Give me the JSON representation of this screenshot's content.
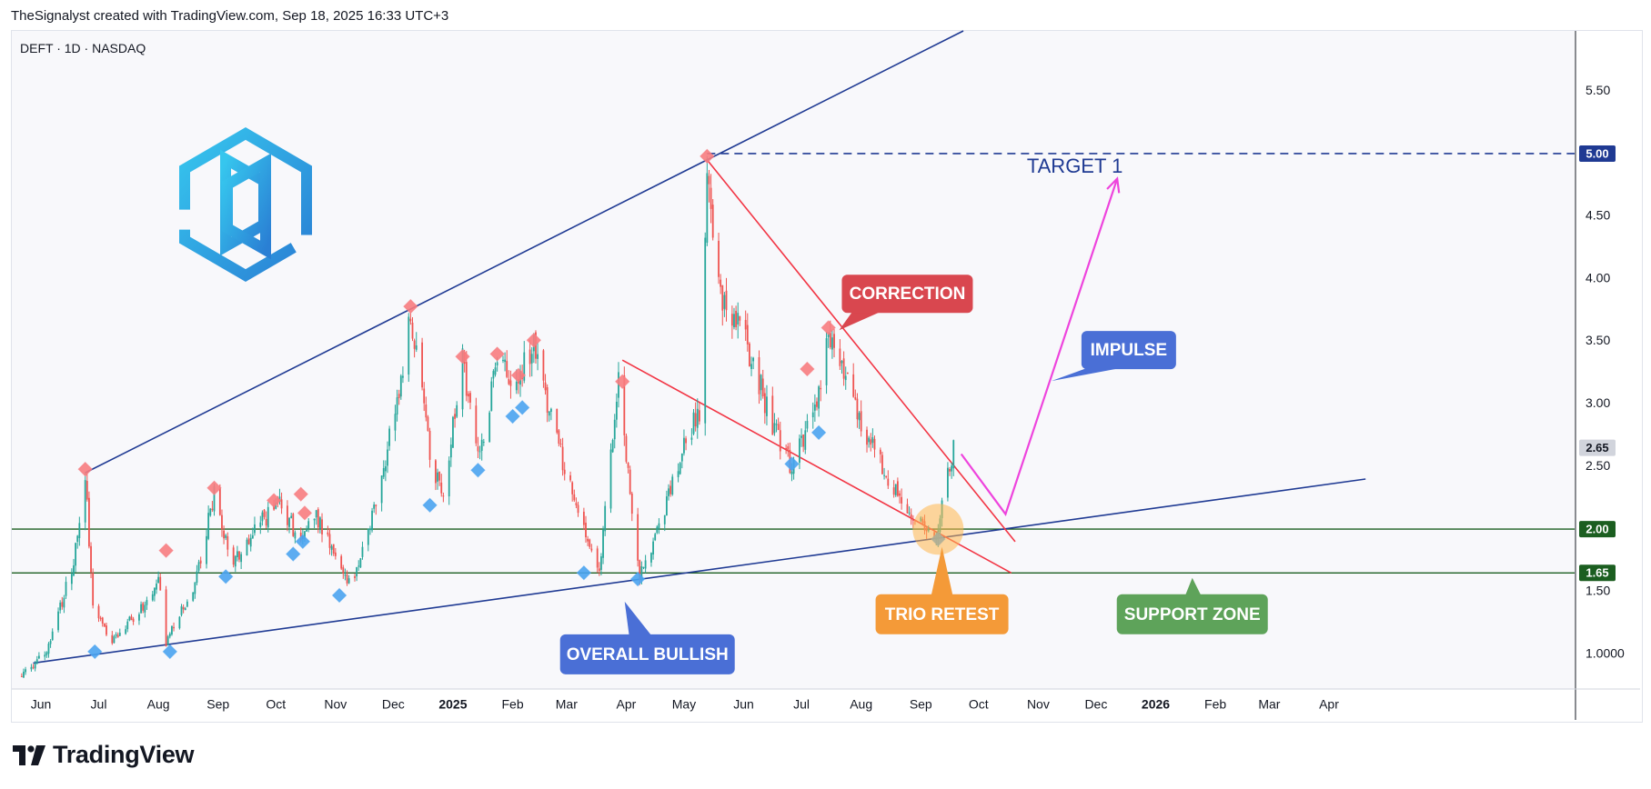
{
  "credit": "TheSignalyst created with TradingView.com, Sep 18, 2025 16:33 UTC+3",
  "brand": {
    "wordmark": "TradingView",
    "icon": "tradingview-logo-icon",
    "company_logo": "hexagon-chain-logo"
  },
  "colors": {
    "up": "#26a69a",
    "down": "#ef5350",
    "trend_line": "#1f3a93",
    "correction_line": "#f23645",
    "impulse_arrow": "#ee44dd",
    "support_line": "#1b5e20",
    "high_marker": "#f77c80",
    "low_marker": "#4aa3f0"
  },
  "chart_data": {
    "type": "candlestick",
    "title": "DEFT · 1D · NASDAQ",
    "symbol": "DEFT",
    "interval": "1D",
    "exchange": "NASDAQ",
    "ylim": [
      0.73,
      5.98
    ],
    "y_ticks": [
      "5.50",
      "5.00",
      "4.50",
      "4.00",
      "3.50",
      "3.00",
      "2.50",
      "2.00",
      "1.50",
      "1.0000"
    ],
    "y_tick_values": [
      5.5,
      5.0,
      4.5,
      4.0,
      3.5,
      3.0,
      2.5,
      2.0,
      1.5,
      1.0
    ],
    "x_ticks": [
      {
        "label": "Jun",
        "date": "2024-06-01",
        "bold": false
      },
      {
        "label": "Jul",
        "date": "2024-07-01",
        "bold": false
      },
      {
        "label": "Aug",
        "date": "2024-08-01",
        "bold": false
      },
      {
        "label": "Sep",
        "date": "2024-09-01",
        "bold": false
      },
      {
        "label": "Oct",
        "date": "2024-10-01",
        "bold": false
      },
      {
        "label": "Nov",
        "date": "2024-11-01",
        "bold": false
      },
      {
        "label": "Dec",
        "date": "2024-12-01",
        "bold": false
      },
      {
        "label": "2025",
        "date": "2025-01-01",
        "bold": true
      },
      {
        "label": "Feb",
        "date": "2025-02-01",
        "bold": false
      },
      {
        "label": "Mar",
        "date": "2025-03-01",
        "bold": false
      },
      {
        "label": "Apr",
        "date": "2025-04-01",
        "bold": false
      },
      {
        "label": "May",
        "date": "2025-05-01",
        "bold": false
      },
      {
        "label": "Jun",
        "date": "2025-06-01",
        "bold": false
      },
      {
        "label": "Jul",
        "date": "2025-07-01",
        "bold": false
      },
      {
        "label": "Aug",
        "date": "2025-08-01",
        "bold": false
      },
      {
        "label": "Sep",
        "date": "2025-09-01",
        "bold": false
      },
      {
        "label": "Oct",
        "date": "2025-10-01",
        "bold": false
      },
      {
        "label": "Nov",
        "date": "2025-11-01",
        "bold": false
      },
      {
        "label": "Dec",
        "date": "2025-12-01",
        "bold": false
      },
      {
        "label": "2026",
        "date": "2026-01-01",
        "bold": true
      },
      {
        "label": "Feb",
        "date": "2026-02-01",
        "bold": false
      },
      {
        "label": "Mar",
        "date": "2026-03-01",
        "bold": false
      },
      {
        "label": "Apr",
        "date": "2026-04-01",
        "bold": false
      }
    ],
    "price_path": [
      {
        "date": "2024-05-22",
        "price": 0.82
      },
      {
        "date": "2024-06-05",
        "price": 1.05
      },
      {
        "date": "2024-06-18",
        "price": 1.75
      },
      {
        "date": "2024-06-24",
        "price": 2.45
      },
      {
        "date": "2024-06-28",
        "price": 1.35
      },
      {
        "date": "2024-07-08",
        "price": 1.1
      },
      {
        "date": "2024-07-22",
        "price": 1.35
      },
      {
        "date": "2024-08-01",
        "price": 1.58
      },
      {
        "date": "2024-08-05",
        "price": 1.1
      },
      {
        "date": "2024-08-20",
        "price": 1.55
      },
      {
        "date": "2024-08-30",
        "price": 2.3
      },
      {
        "date": "2024-09-08",
        "price": 1.7
      },
      {
        "date": "2024-09-20",
        "price": 2.0
      },
      {
        "date": "2024-10-03",
        "price": 2.2
      },
      {
        "date": "2024-10-14",
        "price": 1.9
      },
      {
        "date": "2024-10-22",
        "price": 2.1
      },
      {
        "date": "2024-11-04",
        "price": 1.65
      },
      {
        "date": "2024-11-10",
        "price": 1.55
      },
      {
        "date": "2024-11-22",
        "price": 2.2
      },
      {
        "date": "2024-12-03",
        "price": 3.0
      },
      {
        "date": "2024-12-10",
        "price": 3.75
      },
      {
        "date": "2024-12-20",
        "price": 2.6
      },
      {
        "date": "2024-12-27",
        "price": 2.25
      },
      {
        "date": "2025-01-06",
        "price": 3.35
      },
      {
        "date": "2025-01-15",
        "price": 2.55
      },
      {
        "date": "2025-01-24",
        "price": 3.35
      },
      {
        "date": "2025-02-03",
        "price": 3.2
      },
      {
        "date": "2025-02-12",
        "price": 3.45
      },
      {
        "date": "2025-02-22",
        "price": 2.8
      },
      {
        "date": "2025-03-08",
        "price": 2.1
      },
      {
        "date": "2025-03-18",
        "price": 1.7
      },
      {
        "date": "2025-03-28",
        "price": 3.15
      },
      {
        "date": "2025-04-08",
        "price": 1.65
      },
      {
        "date": "2025-04-20",
        "price": 2.1
      },
      {
        "date": "2025-04-30",
        "price": 2.6
      },
      {
        "date": "2025-05-10",
        "price": 3.0
      },
      {
        "date": "2025-05-13",
        "price": 4.95
      },
      {
        "date": "2025-05-17",
        "price": 3.95
      },
      {
        "date": "2025-06-01",
        "price": 3.55
      },
      {
        "date": "2025-06-20",
        "price": 2.65
      },
      {
        "date": "2025-06-26",
        "price": 2.5
      },
      {
        "date": "2025-07-08",
        "price": 2.95
      },
      {
        "date": "2025-07-15",
        "price": 3.55
      },
      {
        "date": "2025-07-30",
        "price": 2.95
      },
      {
        "date": "2025-08-10",
        "price": 2.55
      },
      {
        "date": "2025-08-28",
        "price": 2.1
      },
      {
        "date": "2025-09-10",
        "price": 1.97
      },
      {
        "date": "2025-09-15",
        "price": 2.45
      },
      {
        "date": "2025-09-18",
        "price": 2.65
      }
    ],
    "swing_highs": [
      {
        "date": "2024-06-24",
        "price": 2.45
      },
      {
        "date": "2024-08-05",
        "price": 1.8
      },
      {
        "date": "2024-08-30",
        "price": 2.3
      },
      {
        "date": "2024-09-30",
        "price": 2.2
      },
      {
        "date": "2024-10-14",
        "price": 2.25
      },
      {
        "date": "2024-10-16",
        "price": 2.1
      },
      {
        "date": "2024-12-10",
        "price": 3.75
      },
      {
        "date": "2025-01-06",
        "price": 3.35
      },
      {
        "date": "2025-01-24",
        "price": 3.37
      },
      {
        "date": "2025-02-04",
        "price": 3.2
      },
      {
        "date": "2025-02-12",
        "price": 3.48
      },
      {
        "date": "2025-03-30",
        "price": 3.15
      },
      {
        "date": "2025-05-13",
        "price": 4.95
      },
      {
        "date": "2025-07-04",
        "price": 3.25
      },
      {
        "date": "2025-07-15",
        "price": 3.58
      }
    ],
    "swing_lows": [
      {
        "date": "2024-06-29",
        "price": 1.05
      },
      {
        "date": "2024-08-07",
        "price": 1.05
      },
      {
        "date": "2024-09-05",
        "price": 1.65
      },
      {
        "date": "2024-10-10",
        "price": 1.83
      },
      {
        "date": "2024-10-15",
        "price": 1.93
      },
      {
        "date": "2024-11-03",
        "price": 1.5
      },
      {
        "date": "2024-12-20",
        "price": 2.22
      },
      {
        "date": "2025-01-14",
        "price": 2.5
      },
      {
        "date": "2025-02-01",
        "price": 2.93
      },
      {
        "date": "2025-02-06",
        "price": 3.0
      },
      {
        "date": "2025-03-10",
        "price": 1.68
      },
      {
        "date": "2025-04-07",
        "price": 1.63
      },
      {
        "date": "2025-06-26",
        "price": 2.55
      },
      {
        "date": "2025-07-10",
        "price": 2.8
      },
      {
        "date": "2025-09-10",
        "price": 1.95
      }
    ],
    "horizontal_levels": [
      {
        "price": 5.0,
        "label": "5.00",
        "style": "dashed",
        "color": "#1f3a93"
      },
      {
        "price": 2.0,
        "label": "2.00",
        "style": "solid",
        "color": "#1b5e20"
      },
      {
        "price": 1.65,
        "label": "1.65",
        "style": "solid",
        "color": "#1b5e20"
      }
    ],
    "last_price": {
      "price": 2.65,
      "label": "2.65"
    },
    "trendlines": [
      {
        "name": "upper-channel-line",
        "from": {
          "date": "2024-06-24",
          "price": 2.45
        },
        "to": {
          "date": "2025-05-13",
          "price": 4.95
        }
      },
      {
        "name": "lower-channel-line",
        "from": {
          "date": "2024-05-28",
          "price": 0.93
        },
        "to": {
          "date": "2026-04-20",
          "price": 2.4
        }
      },
      {
        "name": "correction-upper-line",
        "from": {
          "date": "2025-05-13",
          "price": 4.95
        },
        "to": {
          "date": "2025-10-20",
          "price": 1.9
        }
      },
      {
        "name": "correction-lower-line",
        "from": {
          "date": "2025-03-30",
          "price": 3.35
        },
        "to": {
          "date": "2025-10-18",
          "price": 1.65
        }
      }
    ],
    "projection": [
      {
        "date": "2025-09-22",
        "price": 2.6
      },
      {
        "date": "2025-10-15",
        "price": 2.12
      },
      {
        "date": "2025-12-12",
        "price": 4.8
      }
    ],
    "annotations": [
      {
        "text": "TARGET 1",
        "date": "2025-11-20",
        "price": 4.89
      },
      {
        "text": "CORRECTION",
        "date": "2025-08-25",
        "price": 3.88
      },
      {
        "text": "IMPULSE",
        "date": "2025-12-18",
        "price": 3.43
      },
      {
        "text": "TRIO RETEST",
        "date": "2025-09-12",
        "price": 1.32
      },
      {
        "text": "SUPPORT ZONE",
        "date": "2026-01-20",
        "price": 1.32
      },
      {
        "text": "OVERALL BULLISH",
        "date": "2025-04-12",
        "price": 1.0
      }
    ],
    "highlight": {
      "date": "2025-09-10",
      "price": 1.97,
      "label": "retest-circle"
    }
  }
}
